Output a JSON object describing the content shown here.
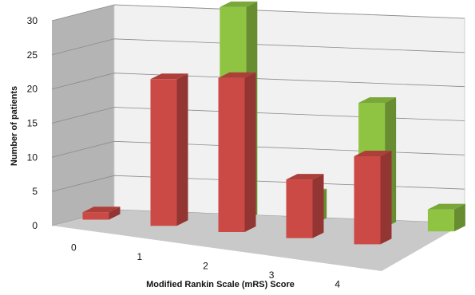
{
  "chart_data": {
    "type": "bar",
    "style": "3d-clustered-column",
    "title": "",
    "xlabel": "Modified Rankin Scale (mRS) Score",
    "ylabel": "Number of patients",
    "categories": [
      "0",
      "1",
      "2",
      "3",
      "4"
    ],
    "y_ticks": [
      "0",
      "5",
      "10",
      "15",
      "20",
      "25",
      "30"
    ],
    "ylim": [
      0,
      30
    ],
    "grid": true,
    "legend": "none",
    "series": [
      {
        "color": "#cc4a45",
        "values": [
          1,
          20,
          21,
          8,
          12
        ]
      },
      {
        "color": "#8fc443",
        "values": [
          14,
          29,
          4,
          17,
          3
        ]
      }
    ]
  }
}
